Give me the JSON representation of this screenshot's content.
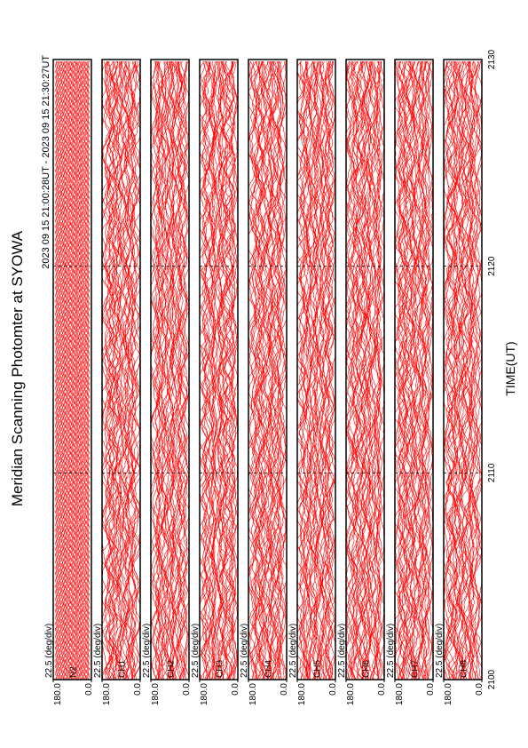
{
  "chart_data": {
    "type": "line",
    "title": "Meridian Scanning Photomter at SYOWA",
    "subtitle": "2023 09 15 21:00:28UT - 2023 09 15 21:30:27UT",
    "x_label": "TIME(UT)",
    "xlim": [
      2100,
      2130
    ],
    "xticks": [
      2100,
      2110,
      2120,
      2130
    ],
    "color": "#ff0000",
    "panels": [
      {
        "label": "N2",
        "scale_label": "22.5 (deg/div)",
        "ylim": [
          0,
          180
        ],
        "yticks": [
          {
            "value": 0,
            "label": "0.0"
          },
          {
            "value": 180,
            "label": "180.0"
          }
        ]
      },
      {
        "label": "CH1",
        "scale_label": "22.5 (deg/div)",
        "ylim": [
          0,
          180
        ],
        "yticks": [
          {
            "value": 0,
            "label": "0.0"
          },
          {
            "value": 180,
            "label": "180.0"
          }
        ]
      },
      {
        "label": "CH2",
        "scale_label": "22.5 (deg/div)",
        "ylim": [
          0,
          180
        ],
        "yticks": [
          {
            "value": 0,
            "label": "0.0"
          },
          {
            "value": 180,
            "label": "180.0"
          }
        ]
      },
      {
        "label": "CH3",
        "scale_label": "22.5 (deg/div)",
        "ylim": [
          0,
          180
        ],
        "yticks": [
          {
            "value": 0,
            "label": "0.0"
          },
          {
            "value": 180,
            "label": "180.0"
          }
        ]
      },
      {
        "label": "CH4",
        "scale_label": "22.5 (deg/div)",
        "ylim": [
          0,
          180
        ],
        "yticks": [
          {
            "value": 0,
            "label": "0.0"
          },
          {
            "value": 180,
            "label": "180.0"
          }
        ]
      },
      {
        "label": "CH5",
        "scale_label": "22.5 (deg/div)",
        "ylim": [
          0,
          180
        ],
        "yticks": [
          {
            "value": 0,
            "label": "0.0"
          },
          {
            "value": 180,
            "label": "180.0"
          }
        ]
      },
      {
        "label": "CH6",
        "scale_label": "22.5 (deg/div)",
        "ylim": [
          0,
          180
        ],
        "yticks": [
          {
            "value": 0,
            "label": "0.0"
          },
          {
            "value": 180,
            "label": "180.0"
          }
        ]
      },
      {
        "label": "CH7",
        "scale_label": "22.5 (deg/div)",
        "ylim": [
          0,
          180
        ],
        "yticks": [
          {
            "value": 0,
            "label": "0.0"
          },
          {
            "value": 180,
            "label": "180.0"
          }
        ]
      },
      {
        "label": "CH8",
        "scale_label": "22.5 (deg/div)",
        "ylim": [
          0,
          180
        ],
        "yticks": [
          {
            "value": 0,
            "label": "0.0"
          },
          {
            "value": 180,
            "label": "180.0"
          }
        ]
      }
    ]
  }
}
